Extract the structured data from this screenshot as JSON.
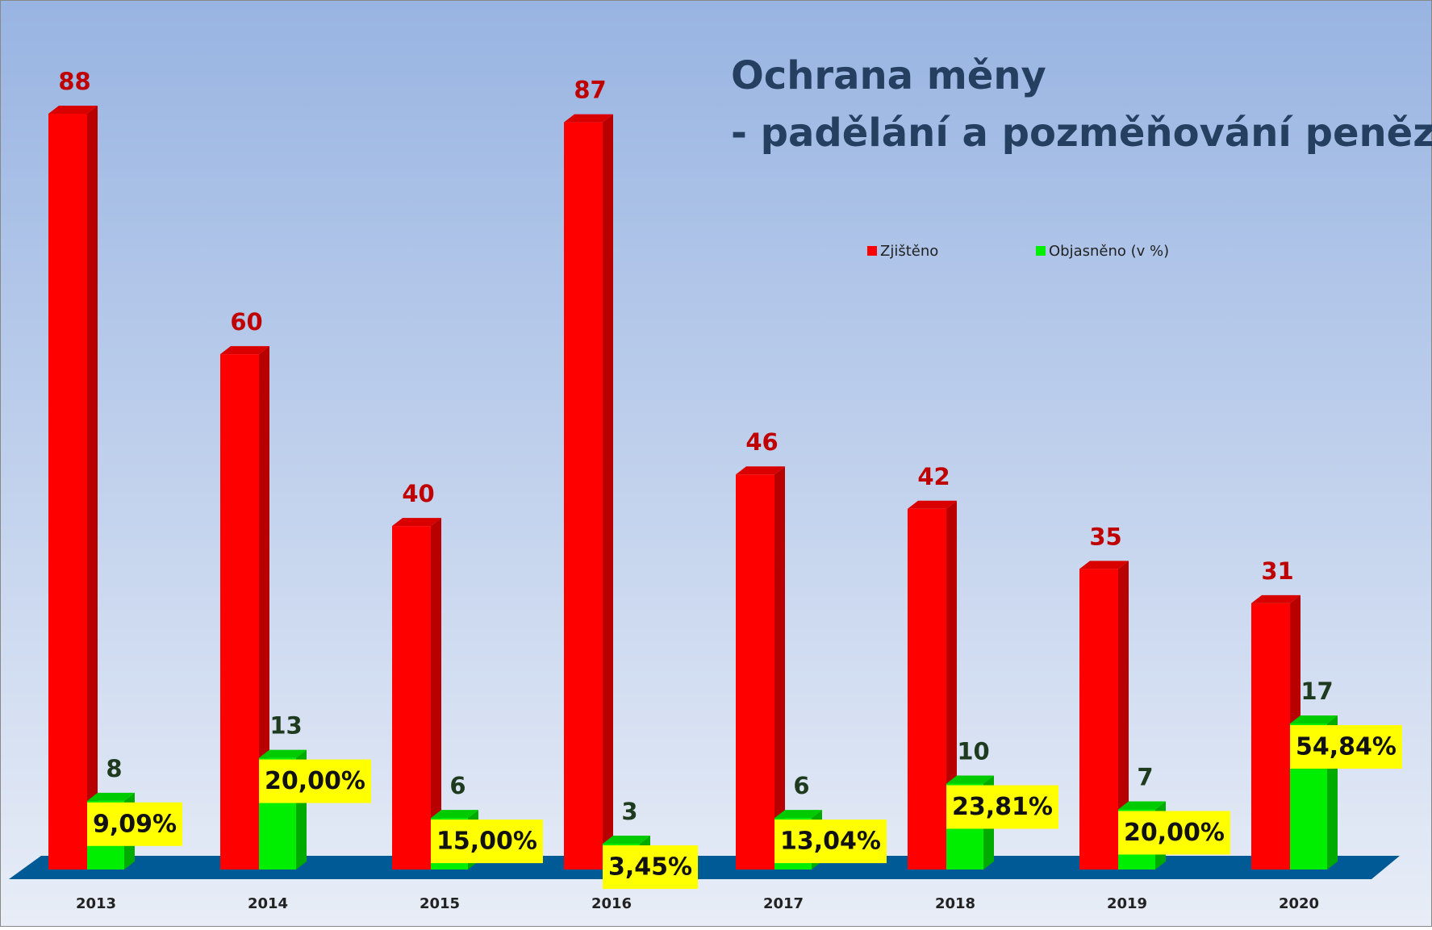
{
  "chart_data": {
    "type": "bar3d",
    "title": "Ochrana měny",
    "subtitle": "- padělání a pozměňování peněz",
    "categories": [
      "2013",
      "2014",
      "2015",
      "2016",
      "2017",
      "2018",
      "2019",
      "2020"
    ],
    "series": [
      {
        "name": "Zjištěno",
        "color": "#ff0000",
        "values": [
          88,
          60,
          40,
          87,
          46,
          42,
          35,
          31
        ]
      },
      {
        "name": "Objasněno (v %)",
        "color": "#00ee00",
        "values": [
          8,
          13,
          6,
          3,
          6,
          10,
          7,
          17
        ]
      }
    ],
    "annotations": [
      "9,09%",
      "20,00%",
      "15,00%",
      "3,45%",
      "13,04%",
      "23,81%",
      "20,00%",
      "54,84%"
    ],
    "legend": "top-right"
  }
}
